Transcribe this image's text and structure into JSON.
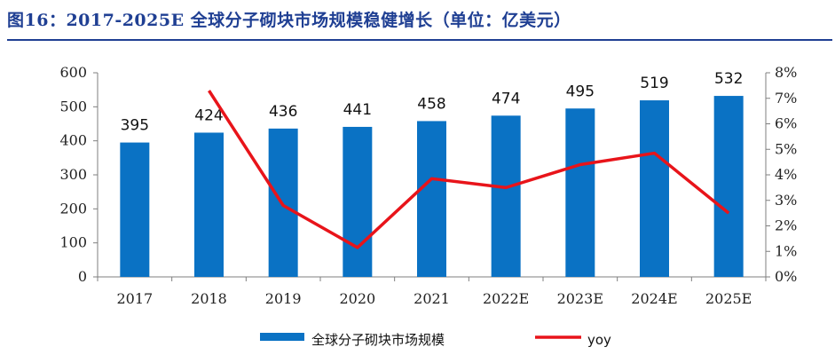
{
  "header": {
    "title": "图16：2017-2025E 全球分子砌块市场规模稳健增长（单位：亿美元）"
  },
  "colors": {
    "title": "#1f3f93",
    "bar": "#0a72c4",
    "line": "#e8141a",
    "axis": "#7f7f7f"
  },
  "chart_data": {
    "type": "bar",
    "categories": [
      "2017",
      "2018",
      "2019",
      "2020",
      "2021",
      "2022E",
      "2023E",
      "2024E",
      "2025E"
    ],
    "series": [
      {
        "name": "全球分子砌块市场规模",
        "type": "bar",
        "axis": "left",
        "values": [
          395,
          424,
          436,
          441,
          458,
          474,
          495,
          519,
          532
        ],
        "data_labels": [
          "395",
          "424",
          "436",
          "441",
          "458",
          "474",
          "495",
          "519",
          "532"
        ]
      },
      {
        "name": "yoy",
        "type": "line",
        "axis": "right",
        "values": [
          null,
          0.073,
          0.028,
          0.0115,
          0.0385,
          0.035,
          0.044,
          0.0485,
          0.025
        ]
      }
    ],
    "ylim_left": [
      0,
      600
    ],
    "yticks_left": [
      "0",
      "100",
      "200",
      "300",
      "400",
      "500",
      "600"
    ],
    "ylim_right": [
      0,
      0.08
    ],
    "yticks_right": [
      "0%",
      "1%",
      "2%",
      "3%",
      "4%",
      "5%",
      "6%",
      "7%",
      "8%"
    ],
    "grid": false,
    "legend_position": "bottom"
  }
}
